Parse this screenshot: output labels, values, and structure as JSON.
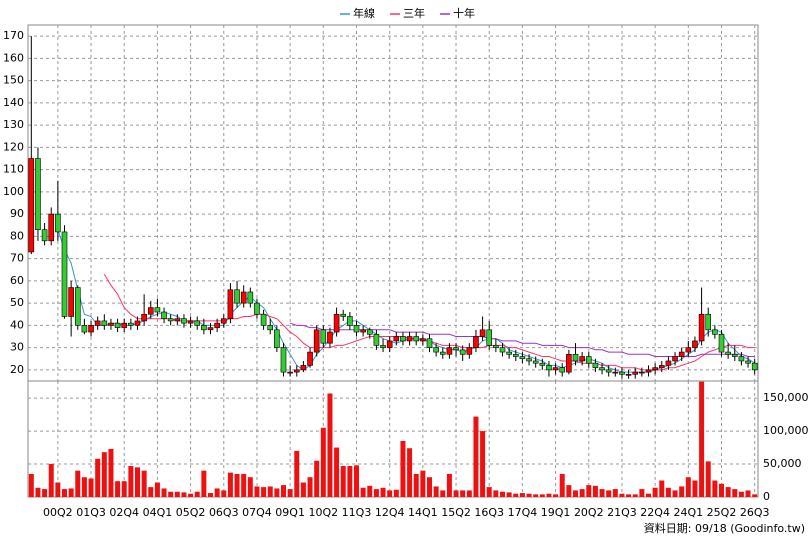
{
  "chart_data": {
    "type": "candlestick",
    "categories": [
      null,
      null,
      null,
      null,
      "00Q2",
      null,
      null,
      null,
      null,
      "01Q3",
      null,
      null,
      null,
      null,
      "02Q4",
      null,
      null,
      null,
      null,
      "04Q1",
      null,
      null,
      null,
      null,
      "05Q2",
      null,
      null,
      null,
      null,
      "06Q3",
      null,
      null,
      null,
      null,
      "07Q4",
      null,
      null,
      null,
      null,
      "09Q1",
      null,
      null,
      null,
      null,
      "10Q2",
      null,
      null,
      null,
      null,
      "11Q3",
      null,
      null,
      null,
      null,
      "12Q4",
      null,
      null,
      null,
      null,
      "14Q1",
      null,
      null,
      null,
      null,
      "15Q2",
      null,
      null,
      null,
      null,
      "16Q3",
      null,
      null,
      null,
      null,
      "17Q4",
      null,
      null,
      null,
      null,
      "19Q1",
      null,
      null,
      null,
      null,
      "20Q2",
      null,
      null,
      null,
      null,
      "21Q3",
      null,
      null,
      null,
      null,
      "22Q4",
      null,
      null,
      null,
      null,
      "24Q1",
      null,
      null,
      null,
      null,
      "25Q2",
      null,
      null,
      null,
      null,
      "26Q3"
    ],
    "open": [
      73,
      115,
      83,
      78,
      90,
      82,
      44,
      57,
      40,
      37,
      40,
      42,
      40,
      41,
      39,
      41,
      40,
      42,
      45,
      48,
      46,
      43,
      42,
      43,
      41,
      42,
      40,
      38,
      39,
      41,
      43,
      56,
      50,
      55,
      50,
      45,
      40,
      38,
      30,
      19,
      19,
      20,
      22,
      28,
      38,
      32,
      37,
      45,
      44,
      40,
      37,
      38,
      36,
      31,
      30,
      33,
      35,
      33,
      35,
      33,
      34,
      30,
      28,
      27,
      30,
      29,
      27,
      30,
      35,
      38,
      31,
      30,
      28,
      27,
      26,
      25,
      24,
      23,
      22,
      20,
      21,
      19,
      27,
      24,
      26,
      23,
      21,
      20,
      19,
      19,
      18,
      18,
      19,
      19,
      20,
      21,
      22,
      24,
      26,
      28,
      30,
      33,
      45,
      38,
      36,
      28,
      27,
      26,
      24,
      23
    ],
    "high": [
      170,
      120,
      86,
      93,
      105,
      85,
      60,
      58,
      43,
      42,
      44,
      45,
      43,
      43,
      43,
      43,
      44,
      54,
      51,
      52,
      48,
      45,
      45,
      45,
      44,
      44,
      43,
      41,
      43,
      45,
      59,
      60,
      58,
      57,
      52,
      47,
      43,
      40,
      32,
      22,
      22,
      24,
      30,
      40,
      40,
      39,
      48,
      47,
      46,
      42,
      40,
      39,
      38,
      34,
      35,
      37,
      37,
      37,
      37,
      36,
      36,
      32,
      30,
      32,
      32,
      31,
      32,
      38,
      44,
      42,
      34,
      32,
      30,
      29,
      28,
      27,
      26,
      25,
      24,
      23,
      23,
      29,
      32,
      28,
      28,
      25,
      23,
      22,
      21,
      21,
      20,
      21,
      21,
      22,
      23,
      24,
      26,
      28,
      30,
      33,
      35,
      57,
      48,
      40,
      38,
      32,
      31,
      28,
      26,
      25
    ],
    "low": [
      72,
      78,
      76,
      76,
      78,
      43,
      35,
      38,
      36,
      35,
      38,
      38,
      38,
      37,
      37,
      38,
      38,
      40,
      43,
      44,
      41,
      40,
      40,
      39,
      39,
      38,
      36,
      36,
      37,
      39,
      41,
      48,
      48,
      48,
      43,
      38,
      36,
      28,
      17,
      17,
      17,
      19,
      21,
      26,
      30,
      30,
      35,
      42,
      38,
      35,
      35,
      34,
      29,
      28,
      28,
      31,
      31,
      31,
      31,
      31,
      28,
      26,
      25,
      25,
      26,
      24,
      25,
      28,
      33,
      29,
      28,
      26,
      25,
      24,
      23,
      22,
      21,
      20,
      17,
      18,
      17,
      18,
      22,
      22,
      21,
      19,
      18,
      17,
      17,
      16,
      16,
      16,
      17,
      17,
      18,
      19,
      20,
      22,
      24,
      26,
      28,
      31,
      35,
      34,
      26,
      25,
      24,
      22,
      21,
      18
    ],
    "close": [
      115,
      83,
      78,
      90,
      82,
      44,
      57,
      40,
      37,
      40,
      42,
      40,
      41,
      39,
      41,
      40,
      42,
      45,
      48,
      46,
      43,
      42,
      43,
      41,
      42,
      40,
      38,
      39,
      41,
      43,
      56,
      50,
      55,
      50,
      45,
      40,
      38,
      30,
      19,
      19,
      20,
      22,
      28,
      38,
      32,
      37,
      45,
      44,
      40,
      37,
      38,
      36,
      31,
      30,
      33,
      35,
      33,
      35,
      33,
      34,
      30,
      28,
      27,
      30,
      29,
      27,
      30,
      35,
      38,
      31,
      30,
      28,
      27,
      26,
      25,
      24,
      23,
      22,
      20,
      21,
      19,
      27,
      24,
      26,
      23,
      21,
      20,
      19,
      19,
      18,
      18,
      19,
      19,
      20,
      21,
      22,
      24,
      26,
      28,
      30,
      33,
      45,
      38,
      36,
      28,
      27,
      26,
      24,
      23,
      20
    ],
    "up_color": "#ff0000",
    "down_color": "#33cc33",
    "series": [
      {
        "name": "年線",
        "color": "#3399cc",
        "values": [
          null,
          null,
          null,
          null,
          83,
          74,
          68,
          56,
          45,
          44,
          40,
          40,
          41,
          41,
          40,
          40,
          41,
          42,
          44,
          45,
          46,
          45,
          44,
          42,
          42,
          42,
          40,
          40,
          40,
          40,
          45,
          48,
          51,
          53,
          50,
          48,
          43,
          38,
          32,
          27,
          22,
          20,
          22,
          27,
          30,
          34,
          38,
          40,
          42,
          42,
          40,
          38,
          36,
          34,
          33,
          32,
          33,
          34,
          34,
          34,
          33,
          31,
          30,
          29,
          29,
          28,
          29,
          30,
          33,
          34,
          34,
          32,
          29,
          28,
          27,
          26,
          25,
          24,
          22,
          22,
          21,
          22,
          23,
          24,
          25,
          24,
          23,
          21,
          20,
          19,
          19,
          19,
          19,
          19,
          20,
          21,
          22,
          23,
          25,
          27,
          29,
          34,
          37,
          38,
          37,
          32,
          29,
          26,
          25,
          23
        ]
      },
      {
        "name": "三年",
        "color": "#ff3366",
        "values": [
          null,
          null,
          null,
          null,
          null,
          null,
          null,
          null,
          null,
          null,
          null,
          63,
          58,
          54,
          48,
          45,
          43,
          43,
          43,
          43,
          43,
          43,
          42,
          42,
          42,
          42,
          42,
          42,
          42,
          42,
          43,
          43,
          44,
          44,
          45,
          45,
          44,
          43,
          40,
          37,
          35,
          32,
          30,
          30,
          30,
          30,
          31,
          31,
          32,
          33,
          34,
          35,
          35,
          35,
          35,
          35,
          35,
          34,
          34,
          33,
          33,
          32,
          31,
          31,
          31,
          30,
          30,
          30,
          30,
          31,
          31,
          31,
          30,
          30,
          29,
          28,
          27,
          26,
          26,
          25,
          24,
          24,
          24,
          23,
          23,
          23,
          22,
          22,
          22,
          21,
          21,
          21,
          20,
          20,
          20,
          20,
          21,
          21,
          22,
          23,
          24,
          26,
          28,
          29,
          30,
          31,
          31,
          31,
          30,
          30
        ]
      },
      {
        "name": "十年",
        "color": "#9933cc",
        "values": [
          null,
          null,
          null,
          null,
          null,
          null,
          null,
          null,
          null,
          null,
          null,
          null,
          null,
          null,
          null,
          null,
          null,
          null,
          null,
          null,
          null,
          null,
          null,
          null,
          null,
          null,
          null,
          null,
          null,
          null,
          null,
          null,
          null,
          null,
          null,
          null,
          null,
          null,
          null,
          41,
          40,
          40,
          39,
          39,
          38,
          38,
          38,
          38,
          38,
          38,
          38,
          38,
          38,
          38,
          38,
          37,
          37,
          37,
          37,
          37,
          36,
          36,
          36,
          36,
          35,
          35,
          35,
          35,
          35,
          34,
          34,
          33,
          33,
          33,
          32,
          32,
          32,
          31,
          31,
          31,
          31,
          30,
          30,
          30,
          30,
          29,
          29,
          28,
          28,
          28,
          27,
          27,
          27,
          27,
          26,
          26,
          26,
          26,
          26,
          26,
          26,
          27,
          27,
          27,
          27,
          27,
          27,
          27,
          26,
          26
        ]
      }
    ],
    "ylim": [
      15,
      175
    ],
    "yticks": [
      20,
      30,
      40,
      50,
      60,
      70,
      80,
      90,
      100,
      110,
      120,
      130,
      140,
      150,
      160,
      170
    ],
    "grid": true,
    "volume": {
      "color": "#ee1111",
      "values": [
        35000,
        14000,
        12000,
        50000,
        22000,
        12000,
        13000,
        40000,
        30000,
        28000,
        58000,
        68000,
        73000,
        24000,
        24000,
        47000,
        45000,
        40000,
        15000,
        22000,
        13000,
        8000,
        8000,
        7000,
        5000,
        8000,
        40000,
        6000,
        13000,
        10000,
        37000,
        35000,
        35000,
        30000,
        16000,
        15000,
        16000,
        13000,
        18000,
        12000,
        70000,
        22000,
        30000,
        55000,
        105000,
        157000,
        75000,
        47000,
        47000,
        48000,
        14000,
        17000,
        12000,
        14000,
        10000,
        11000,
        85000,
        74000,
        35000,
        40000,
        30000,
        16000,
        10000,
        35000,
        10000,
        10000,
        10000,
        122000,
        100000,
        15000,
        10000,
        8000,
        7000,
        5000,
        6000,
        5000,
        4000,
        4000,
        5000,
        4000,
        35000,
        18000,
        10000,
        12000,
        18000,
        17000,
        12000,
        10000,
        12000,
        5000,
        4000,
        4000,
        12000,
        5000,
        14000,
        25000,
        14000,
        10000,
        16000,
        30000,
        25000,
        175000,
        54000,
        25000,
        20000,
        15000,
        12000,
        8000,
        10000,
        4000
      ]
    },
    "y2lim": [
      0,
      176000
    ],
    "y2ticks": [
      0,
      {
        "value": 50000,
        "label": "50,000"
      },
      {
        "value": 100000,
        "label": "100,000"
      },
      {
        "value": 150000,
        "label": "150,000"
      }
    ],
    "source": "資料日期: 09/18 (Goodinfo.tw)"
  }
}
